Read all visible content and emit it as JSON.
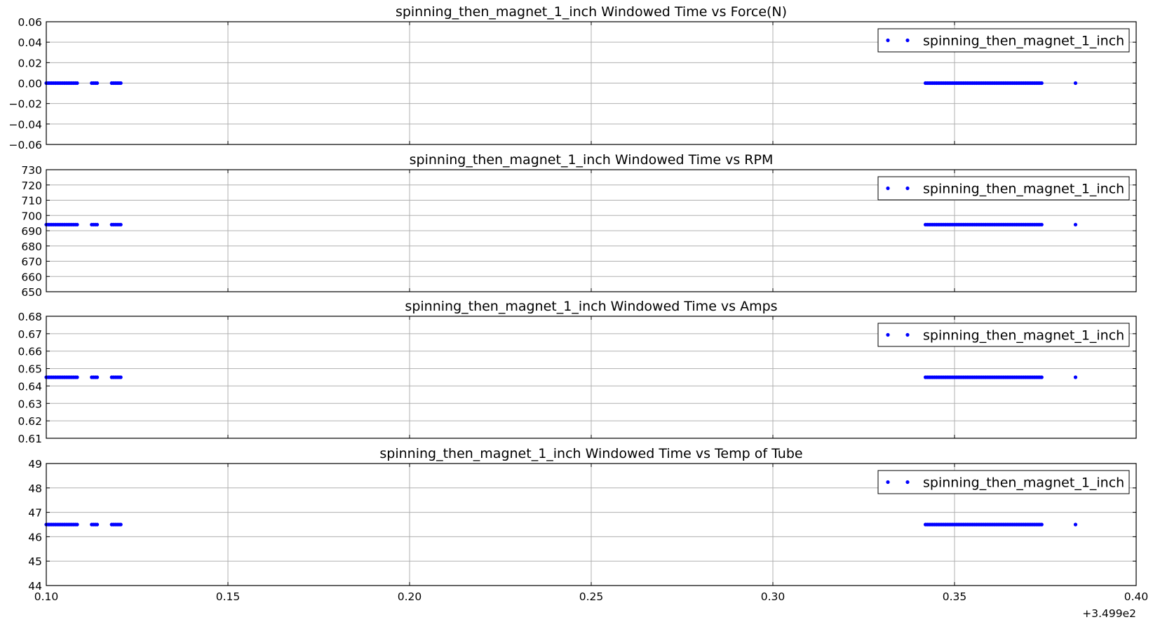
{
  "figure": {
    "x_offset_label": "+3.499e2"
  },
  "colors": {
    "series": "#0000ff",
    "grid": "#b0b0b0",
    "frame": "#000000",
    "background": "#ffffff"
  },
  "chart_data": [
    {
      "type": "scatter",
      "title": "spinning_then_magnet_1_inch Windowed Time vs Force(N)",
      "xlim": [
        0.1,
        0.4
      ],
      "ylim": [
        -0.06,
        0.06
      ],
      "yticks": [
        "0.06",
        "0.04",
        "0.02",
        "0.00",
        "−0.02",
        "−0.04",
        "−0.06"
      ],
      "ytick_values": [
        0.06,
        0.04,
        0.02,
        0.0,
        -0.02,
        -0.04,
        -0.06
      ],
      "grid": true,
      "legend": "top-right",
      "series": [
        {
          "name": "spinning_then_magnet_1_inch",
          "constant_y": 0.0,
          "x_ranges": [
            [
              0.1,
              0.1085
            ],
            [
              0.1125,
              0.114
            ],
            [
              0.118,
              0.1205
            ],
            [
              0.342,
              0.374
            ]
          ],
          "x_points": [
            0.3833
          ]
        }
      ]
    },
    {
      "type": "scatter",
      "title": "spinning_then_magnet_1_inch Windowed Time vs RPM",
      "xlim": [
        0.1,
        0.4
      ],
      "ylim": [
        650,
        730
      ],
      "yticks": [
        "730",
        "720",
        "710",
        "700",
        "690",
        "680",
        "670",
        "660",
        "650"
      ],
      "ytick_values": [
        730,
        720,
        710,
        700,
        690,
        680,
        670,
        660,
        650
      ],
      "grid": true,
      "legend": "top-right",
      "series": [
        {
          "name": "spinning_then_magnet_1_inch",
          "constant_y": 694,
          "x_ranges": [
            [
              0.1,
              0.1085
            ],
            [
              0.1125,
              0.114
            ],
            [
              0.118,
              0.1205
            ],
            [
              0.342,
              0.374
            ]
          ],
          "x_points": [
            0.3833
          ]
        }
      ]
    },
    {
      "type": "scatter",
      "title": "spinning_then_magnet_1_inch Windowed Time vs Amps",
      "xlim": [
        0.1,
        0.4
      ],
      "ylim": [
        0.61,
        0.68
      ],
      "yticks": [
        "0.68",
        "0.67",
        "0.66",
        "0.65",
        "0.64",
        "0.63",
        "0.62",
        "0.61"
      ],
      "ytick_values": [
        0.68,
        0.67,
        0.66,
        0.65,
        0.64,
        0.63,
        0.62,
        0.61
      ],
      "grid": true,
      "legend": "top-right",
      "series": [
        {
          "name": "spinning_then_magnet_1_inch",
          "constant_y": 0.645,
          "x_ranges": [
            [
              0.1,
              0.1085
            ],
            [
              0.1125,
              0.114
            ],
            [
              0.118,
              0.1205
            ],
            [
              0.342,
              0.374
            ]
          ],
          "x_points": [
            0.3833
          ]
        }
      ]
    },
    {
      "type": "scatter",
      "title": "spinning_then_magnet_1_inch Windowed Time vs Temp of Tube",
      "xlim": [
        0.1,
        0.4
      ],
      "ylim": [
        44,
        49
      ],
      "yticks": [
        "49",
        "48",
        "47",
        "46",
        "45",
        "44"
      ],
      "ytick_values": [
        49,
        48,
        47,
        46,
        45,
        44
      ],
      "xticks": [
        "0.10",
        "0.15",
        "0.20",
        "0.25",
        "0.30",
        "0.35",
        "0.40"
      ],
      "xtick_values": [
        0.1,
        0.15,
        0.2,
        0.25,
        0.3,
        0.35,
        0.4
      ],
      "grid": true,
      "legend": "top-right",
      "series": [
        {
          "name": "spinning_then_magnet_1_inch",
          "constant_y": 46.5,
          "x_ranges": [
            [
              0.1,
              0.1085
            ],
            [
              0.1125,
              0.114
            ],
            [
              0.118,
              0.1205
            ],
            [
              0.342,
              0.374
            ]
          ],
          "x_points": [
            0.3833
          ]
        }
      ]
    }
  ]
}
